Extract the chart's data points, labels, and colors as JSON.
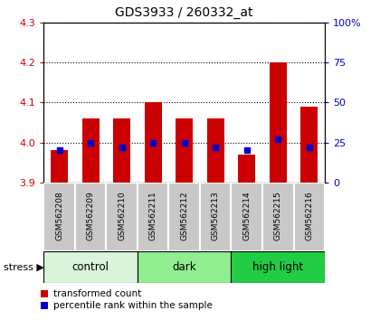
{
  "title": "GDS3933 / 260332_at",
  "samples": [
    "GSM562208",
    "GSM562209",
    "GSM562210",
    "GSM562211",
    "GSM562212",
    "GSM562213",
    "GSM562214",
    "GSM562215",
    "GSM562216"
  ],
  "transformed_count": [
    3.98,
    4.06,
    4.06,
    4.1,
    4.06,
    4.06,
    3.97,
    4.2,
    4.09
  ],
  "percentile_rank": [
    20,
    25,
    22,
    25,
    25,
    22,
    20,
    27,
    22
  ],
  "ylim": [
    3.9,
    4.3
  ],
  "yticks": [
    3.9,
    4.0,
    4.1,
    4.2,
    4.3
  ],
  "right_yticks": [
    0,
    25,
    50,
    75,
    100
  ],
  "right_ylim": [
    0,
    100
  ],
  "bar_color": "#cc0000",
  "dot_color": "#0000cc",
  "tick_label_color_left": "#cc0000",
  "tick_label_color_right": "#0000cc",
  "group_boundaries": [
    [
      0,
      2,
      "control",
      "#d9f5d9"
    ],
    [
      3,
      5,
      "dark",
      "#90ee90"
    ],
    [
      6,
      8,
      "high light",
      "#00cc44"
    ]
  ],
  "legend_items": [
    "transformed count",
    "percentile rank within the sample"
  ]
}
